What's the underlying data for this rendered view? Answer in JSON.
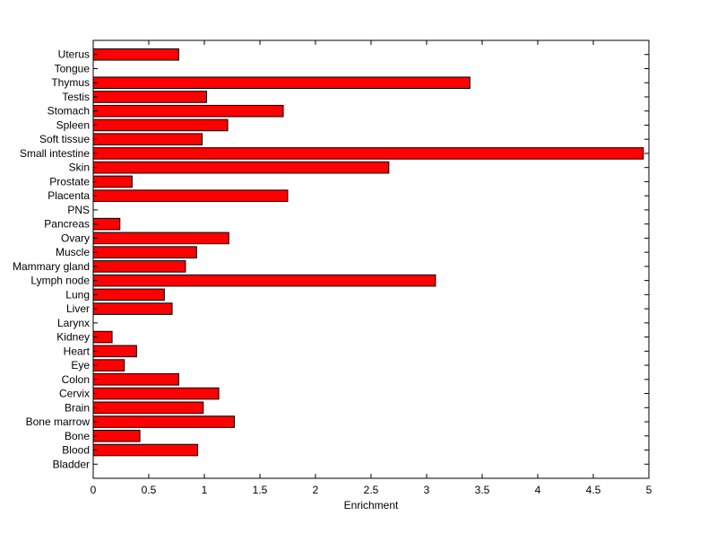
{
  "chart_data": {
    "type": "bar",
    "orientation": "horizontal",
    "title": "",
    "xlabel": "Enrichment",
    "ylabel": "",
    "xlim": [
      0,
      5
    ],
    "xticks": [
      "0",
      "0.5",
      "1",
      "1.5",
      "2",
      "2.5",
      "3",
      "3.5",
      "4",
      "4.5",
      "5"
    ],
    "grid": false,
    "bar_color": "#ff0000",
    "edge_color": "#000000",
    "categories": [
      "Uterus",
      "Tongue",
      "Thymus",
      "Testis",
      "Stomach",
      "Spleen",
      "Soft tissue",
      "Small intestine",
      "Skin",
      "Prostate",
      "Placenta",
      "PNS",
      "Pancreas",
      "Ovary",
      "Muscle",
      "Mammary gland",
      "Lymph node",
      "Lung",
      "Liver",
      "Larynx",
      "Kidney",
      "Heart",
      "Eye",
      "Colon",
      "Cervix",
      "Brain",
      "Bone marrow",
      "Bone",
      "Blood",
      "Bladder"
    ],
    "values": [
      0.77,
      0,
      3.39,
      1.02,
      1.71,
      1.21,
      0.98,
      4.95,
      2.66,
      0.35,
      1.75,
      0,
      0.24,
      1.22,
      0.93,
      0.83,
      3.08,
      0.64,
      0.71,
      0,
      0.17,
      0.39,
      0.28,
      0.77,
      1.13,
      0.99,
      1.27,
      0.42,
      0.94,
      0
    ]
  }
}
